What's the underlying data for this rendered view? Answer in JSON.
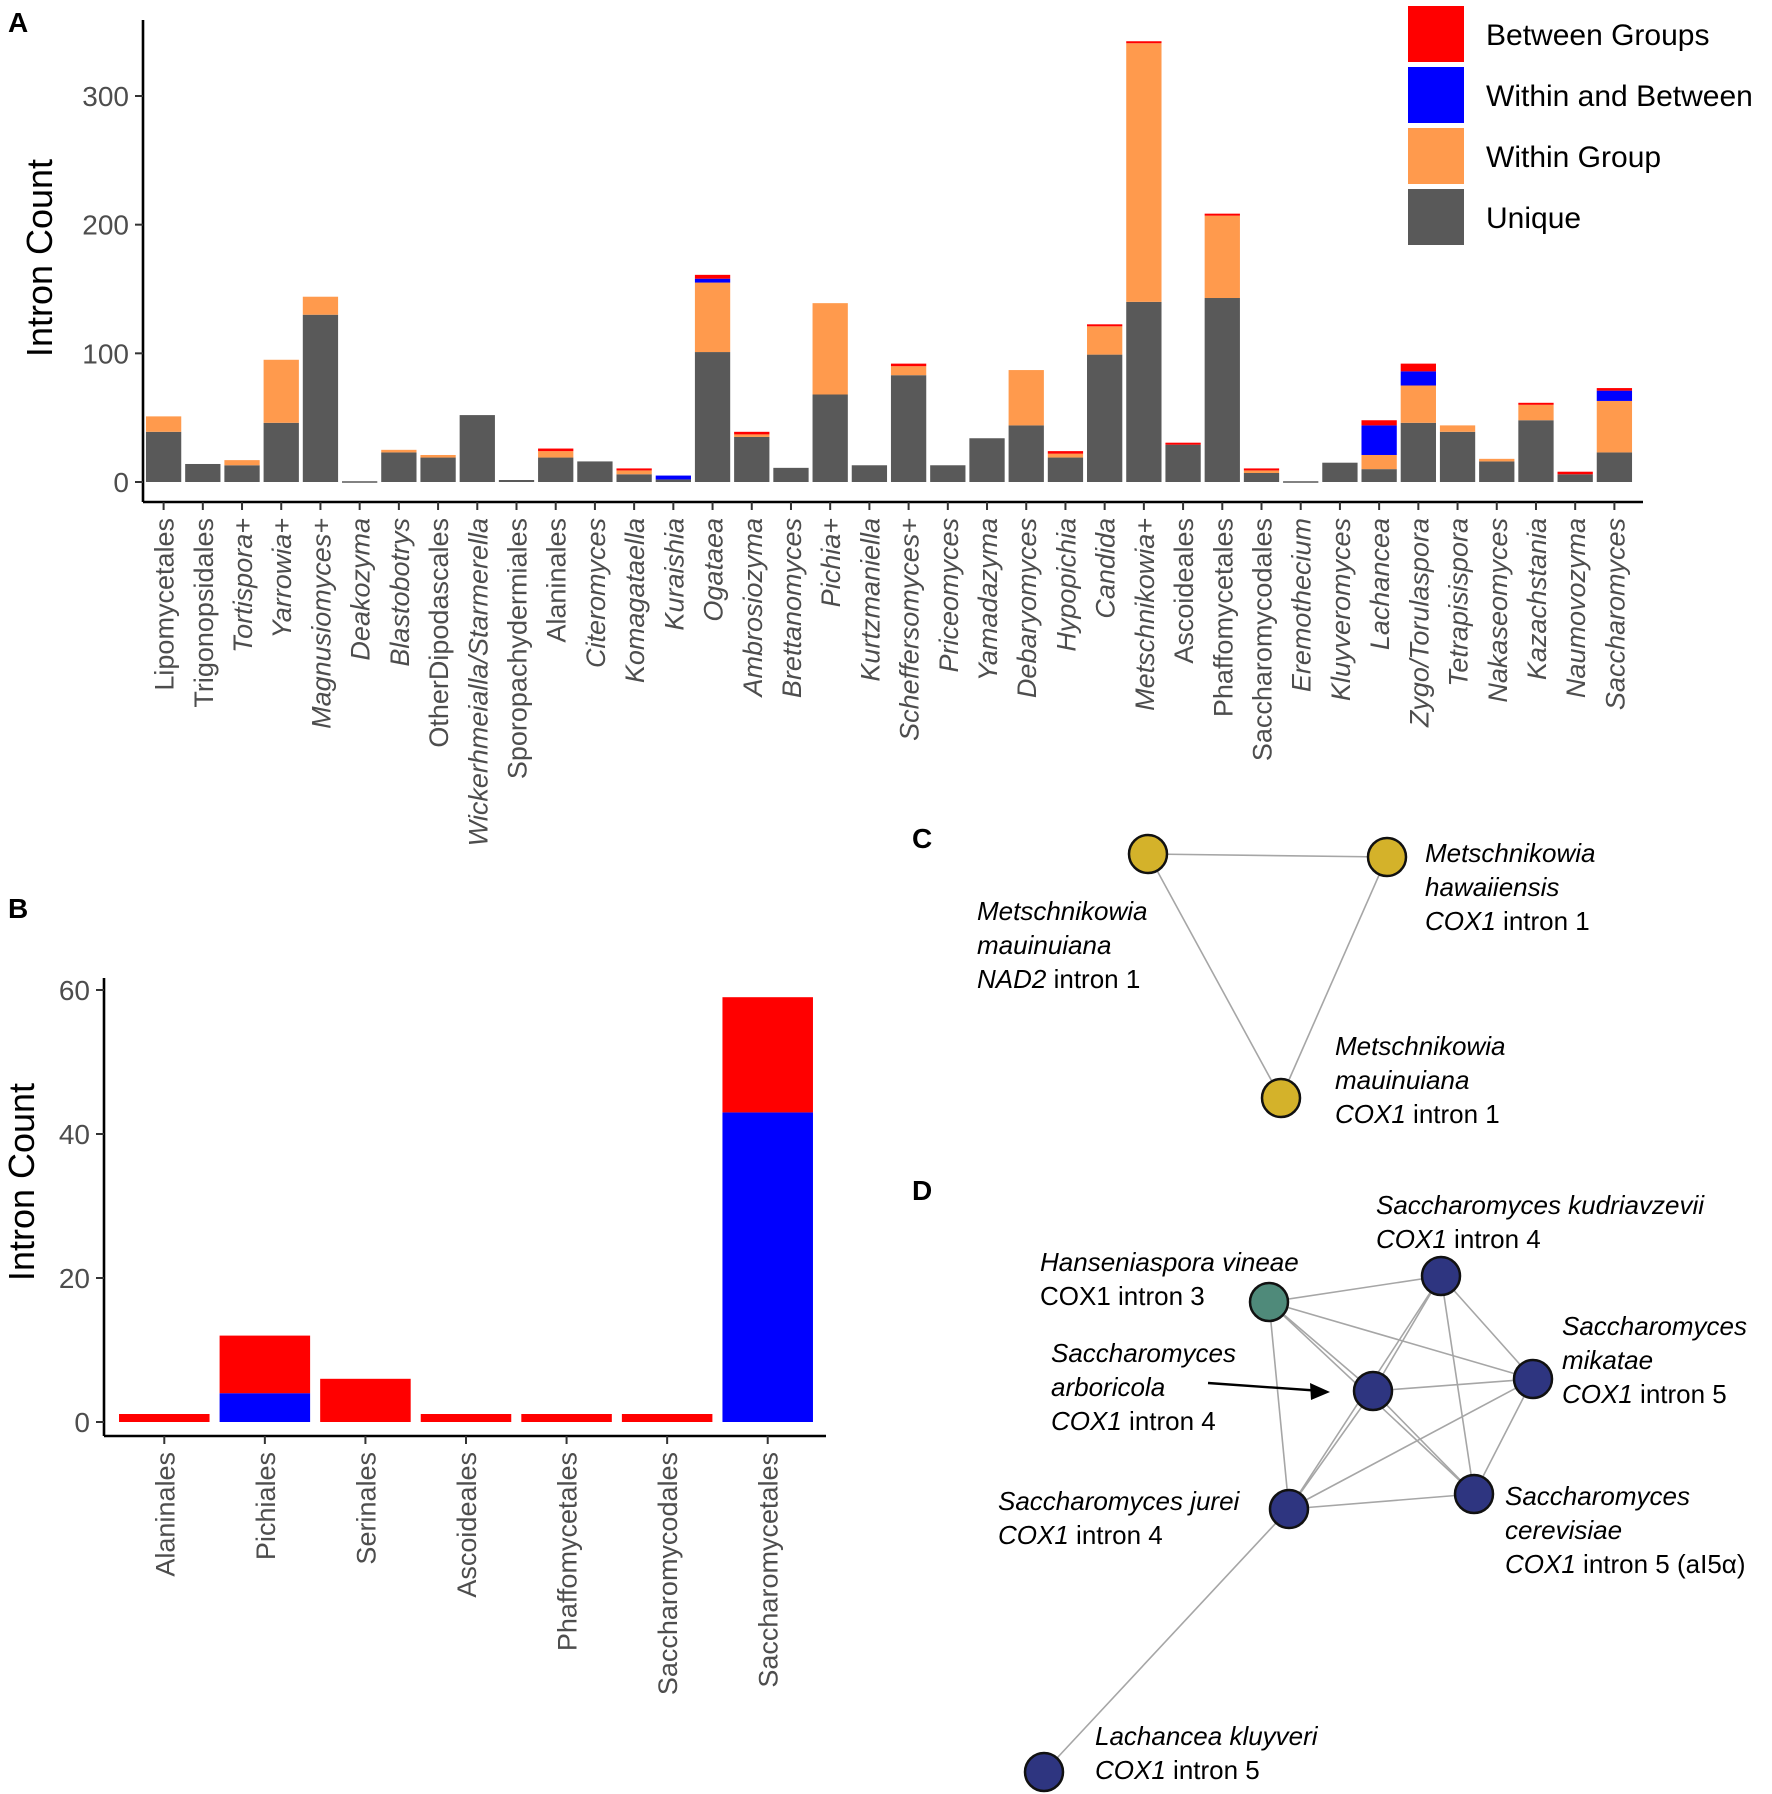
{
  "panels": {
    "a": "A",
    "b": "B",
    "c": "C",
    "d": "D"
  },
  "colors": {
    "between_groups": "#ff0000",
    "within_and_between": "#0000ff",
    "within_group": "#ff9a4d",
    "unique": "#595959",
    "node_gold": "#d4b22a",
    "node_teal": "#4f8a7a",
    "node_navy": "#2e3580"
  },
  "chart_data": [
    {
      "type": "bar",
      "stacked": true,
      "title": "",
      "ylabel": "Intron Count",
      "xlabel": "",
      "ylim": [
        0,
        350
      ],
      "yticks": [
        0,
        100,
        200,
        300
      ],
      "legend_position": "top-right",
      "categories": [
        "Lipomycetales",
        "Trigonopsidales",
        "Tortispora+",
        "Yarrowia+",
        "Magnusiomyces+",
        "Deakozyma",
        "Blastobotrys",
        "OtherDipodascales",
        "Wickerhmeialla/Starmerella",
        "Sporopachydermiales",
        "Alaninales",
        "Citeromyces",
        "Komagataella",
        "Kuraishia",
        "Ogataea",
        "Ambrosiozyma",
        "Brettanomyces",
        "Pichia+",
        "Kurtzmaniella",
        "Scheffersomyces+",
        "Priceomyces",
        "Yamadazyma",
        "Debaryomyces",
        "Hypopichia",
        "Candida",
        "Metschnikowia+",
        "Ascoideales",
        "Phaffomycetales",
        "Saccharomycodales",
        "Eremothecium",
        "Kluyveromyces",
        "Lachancea",
        "Zygo/Torulaspora",
        "Tetrapisispora",
        "Nakaseomyces",
        "Kazachstania",
        "Naumovozyma",
        "Saccharomyces"
      ],
      "italic_categories": [
        "Tortispora+",
        "Yarrowia+",
        "Magnusiomyces+",
        "Deakozyma",
        "Blastobotrys",
        "Wickerhmeialla/Starmerella",
        "Citeromyces",
        "Komagataella",
        "Kuraishia",
        "Ogataea",
        "Ambrosiozyma",
        "Brettanomyces",
        "Pichia+",
        "Kurtzmaniella",
        "Scheffersomyces+",
        "Priceomyces",
        "Yamadazyma",
        "Debaryomyces",
        "Hypopichia",
        "Candida",
        "Metschnikowia+",
        "Eremothecium",
        "Kluyveromyces",
        "Lachancea",
        "Zygo/Torulaspora",
        "Tetrapisispora",
        "Nakaseomyces",
        "Kazachstania",
        "Naumovozyma",
        "Saccharomyces"
      ],
      "series": [
        {
          "name": "Unique",
          "color_key": "unique",
          "values": [
            39,
            14,
            13,
            46,
            130,
            0,
            23,
            19,
            52,
            1,
            19,
            16,
            6,
            2,
            101,
            35,
            11,
            68,
            13,
            83,
            13,
            34,
            44,
            19,
            99,
            140,
            29,
            143,
            7,
            0,
            15,
            10,
            46,
            39,
            16,
            48,
            6,
            23
          ]
        },
        {
          "name": "Within Group",
          "color_key": "within_group",
          "values": [
            12,
            0,
            4,
            49,
            14,
            0,
            2,
            2,
            0,
            0,
            5,
            0,
            3,
            0,
            54,
            2,
            0,
            71,
            0,
            7,
            0,
            0,
            43,
            3,
            22,
            201,
            0,
            64,
            2,
            0,
            0,
            11,
            29,
            5,
            2,
            12,
            0,
            40
          ]
        },
        {
          "name": "Within and Between",
          "color_key": "within_and_between",
          "values": [
            0,
            0,
            0,
            0,
            0,
            0,
            0,
            0,
            0,
            0,
            0,
            0,
            0,
            3,
            3,
            0,
            0,
            0,
            0,
            0,
            0,
            0,
            0,
            0,
            0,
            0,
            0,
            0,
            0,
            0,
            0,
            23,
            11,
            0,
            0,
            0,
            0,
            8
          ]
        },
        {
          "name": "Between Groups",
          "color_key": "between_groups",
          "values": [
            0,
            0,
            0,
            0,
            0,
            0,
            0,
            0,
            0,
            0,
            2,
            0,
            1,
            0,
            3,
            2,
            0,
            0,
            0,
            2,
            0,
            0,
            0,
            2,
            1,
            1,
            1,
            1,
            1,
            0,
            0,
            4,
            6,
            0,
            0,
            1,
            2,
            2
          ]
        }
      ],
      "legend": [
        "Between Groups",
        "Within and Between",
        "Within Group",
        "Unique"
      ]
    },
    {
      "type": "bar",
      "stacked": true,
      "title": "",
      "ylabel": "Intron Count",
      "xlabel": "",
      "ylim": [
        0,
        62
      ],
      "yticks": [
        0,
        20,
        40,
        60
      ],
      "categories": [
        "Alaninales",
        "Pichiales",
        "Serinales",
        "Ascoideales",
        "Phaffomycetales",
        "Saccharomycodales",
        "Saccharomycetales"
      ],
      "series": [
        {
          "name": "Within and Between",
          "color_key": "within_and_between",
          "values": [
            0,
            4,
            0,
            0,
            0,
            0,
            43
          ]
        },
        {
          "name": "Between Groups",
          "color_key": "between_groups",
          "values": [
            1,
            8,
            6,
            1,
            1,
            1,
            16
          ]
        }
      ]
    }
  ],
  "network_c": {
    "nodes": [
      {
        "id": "mm_nad2",
        "lines": [
          {
            "parts": [
              {
                "t": "Metschnikowia",
                "i": true
              }
            ]
          },
          {
            "parts": [
              {
                "t": "mauinuiana",
                "i": true
              }
            ]
          },
          {
            "parts": [
              {
                "t": "NAD2",
                "i": true
              },
              {
                "t": " intron 1",
                "i": false
              }
            ]
          }
        ]
      },
      {
        "id": "mh_cox1",
        "lines": [
          {
            "parts": [
              {
                "t": "Metschnikowia",
                "i": true
              }
            ]
          },
          {
            "parts": [
              {
                "t": "hawaiiensis",
                "i": true
              }
            ]
          },
          {
            "parts": [
              {
                "t": "COX1",
                "i": true
              },
              {
                "t": " intron 1",
                "i": false
              }
            ]
          }
        ]
      },
      {
        "id": "mm_cox1",
        "lines": [
          {
            "parts": [
              {
                "t": "Metschnikowia",
                "i": true
              }
            ]
          },
          {
            "parts": [
              {
                "t": "mauinuiana",
                "i": true
              }
            ]
          },
          {
            "parts": [
              {
                "t": "COX1",
                "i": true
              },
              {
                "t": " intron 1",
                "i": false
              }
            ]
          }
        ]
      }
    ]
  },
  "network_d": {
    "nodes": [
      {
        "id": "hv",
        "lines": [
          {
            "parts": [
              {
                "t": "Hanseniaspora vineae",
                "i": true
              }
            ]
          },
          {
            "parts": [
              {
                "t": "COX1 intron 3",
                "i": false
              }
            ]
          }
        ]
      },
      {
        "id": "sk",
        "lines": [
          {
            "parts": [
              {
                "t": "Saccharomyces kudriavzevii",
                "i": true
              }
            ]
          },
          {
            "parts": [
              {
                "t": "COX1",
                "i": true
              },
              {
                "t": " intron 4",
                "i": false
              }
            ]
          }
        ]
      },
      {
        "id": "sm",
        "lines": [
          {
            "parts": [
              {
                "t": "Saccharomyces",
                "i": true
              }
            ]
          },
          {
            "parts": [
              {
                "t": "mikatae",
                "i": true
              }
            ]
          },
          {
            "parts": [
              {
                "t": "COX1",
                "i": true
              },
              {
                "t": " intron 5",
                "i": false
              }
            ]
          }
        ]
      },
      {
        "id": "sa",
        "lines": [
          {
            "parts": [
              {
                "t": "Saccharomyces",
                "i": true
              }
            ]
          },
          {
            "parts": [
              {
                "t": "arboricola",
                "i": true
              }
            ]
          },
          {
            "parts": [
              {
                "t": "COX1",
                "i": true
              },
              {
                "t": " intron 4",
                "i": false
              }
            ]
          }
        ]
      },
      {
        "id": "sj",
        "lines": [
          {
            "parts": [
              {
                "t": "Saccharomyces jurei",
                "i": true
              }
            ]
          },
          {
            "parts": [
              {
                "t": "COX1",
                "i": true
              },
              {
                "t": " intron 4",
                "i": false
              }
            ]
          }
        ]
      },
      {
        "id": "sc",
        "lines": [
          {
            "parts": [
              {
                "t": "Saccharomyces",
                "i": true
              }
            ]
          },
          {
            "parts": [
              {
                "t": "cerevisiae",
                "i": true
              }
            ]
          },
          {
            "parts": [
              {
                "t": "COX1",
                "i": true
              },
              {
                "t": " intron 5 (aI5α)",
                "i": false
              }
            ]
          }
        ]
      },
      {
        "id": "lk",
        "lines": [
          {
            "parts": [
              {
                "t": "Lachancea kluyveri",
                "i": true
              }
            ]
          },
          {
            "parts": [
              {
                "t": "COX1",
                "i": true
              },
              {
                "t": " intron 5",
                "i": false
              }
            ]
          }
        ]
      }
    ]
  }
}
